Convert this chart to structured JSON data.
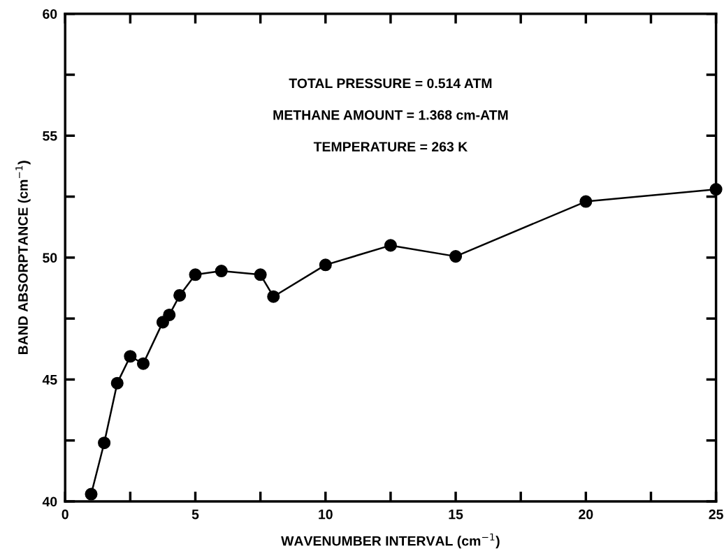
{
  "chart_data": {
    "type": "line",
    "xlabel": "WAVENUMBER INTERVAL (cm$^{−1}$)",
    "ylabel": "BAND ABSORPTANCE (cm$^{−1}$)",
    "x": [
      1.0,
      1.5,
      2.0,
      2.5,
      3.0,
      3.75,
      4.0,
      4.4,
      5.0,
      6.0,
      7.5,
      8.0,
      10.0,
      12.5,
      15.0,
      20.0,
      25.0
    ],
    "series": [
      {
        "color": "#000000",
        "values": [
          40.3,
          42.4,
          44.85,
          45.95,
          45.65,
          47.35,
          47.65,
          48.45,
          49.3,
          49.45,
          49.3,
          48.4,
          49.7,
          50.5,
          50.05,
          52.3,
          52.8
        ]
      }
    ],
    "xlim": [
      0,
      25
    ],
    "ylim": [
      40,
      60
    ],
    "xticks": [
      0,
      {
        "value": 2.5,
        "label": null
      },
      5,
      {
        "value": 7.5,
        "label": null
      },
      10,
      {
        "value": 12.5,
        "label": null
      },
      15,
      {
        "value": 17.5,
        "label": null
      },
      20,
      {
        "value": 22.5,
        "label": null
      },
      25
    ],
    "yticks": [
      40,
      {
        "value": 42.5,
        "label": null
      },
      45,
      {
        "value": 47.5,
        "label": null
      },
      50,
      {
        "value": 52.5,
        "label": null
      },
      55,
      {
        "value": 57.5,
        "label": null
      },
      60
    ],
    "annotations": [
      "TOTAL PRESSURE = 0.514 ATM",
      "METHANE AMOUNT = 1.368 cm-ATM",
      "TEMPERATURE = 263 K"
    ],
    "grid": false,
    "legend": false,
    "marker": "circle",
    "line_style": "solid"
  }
}
